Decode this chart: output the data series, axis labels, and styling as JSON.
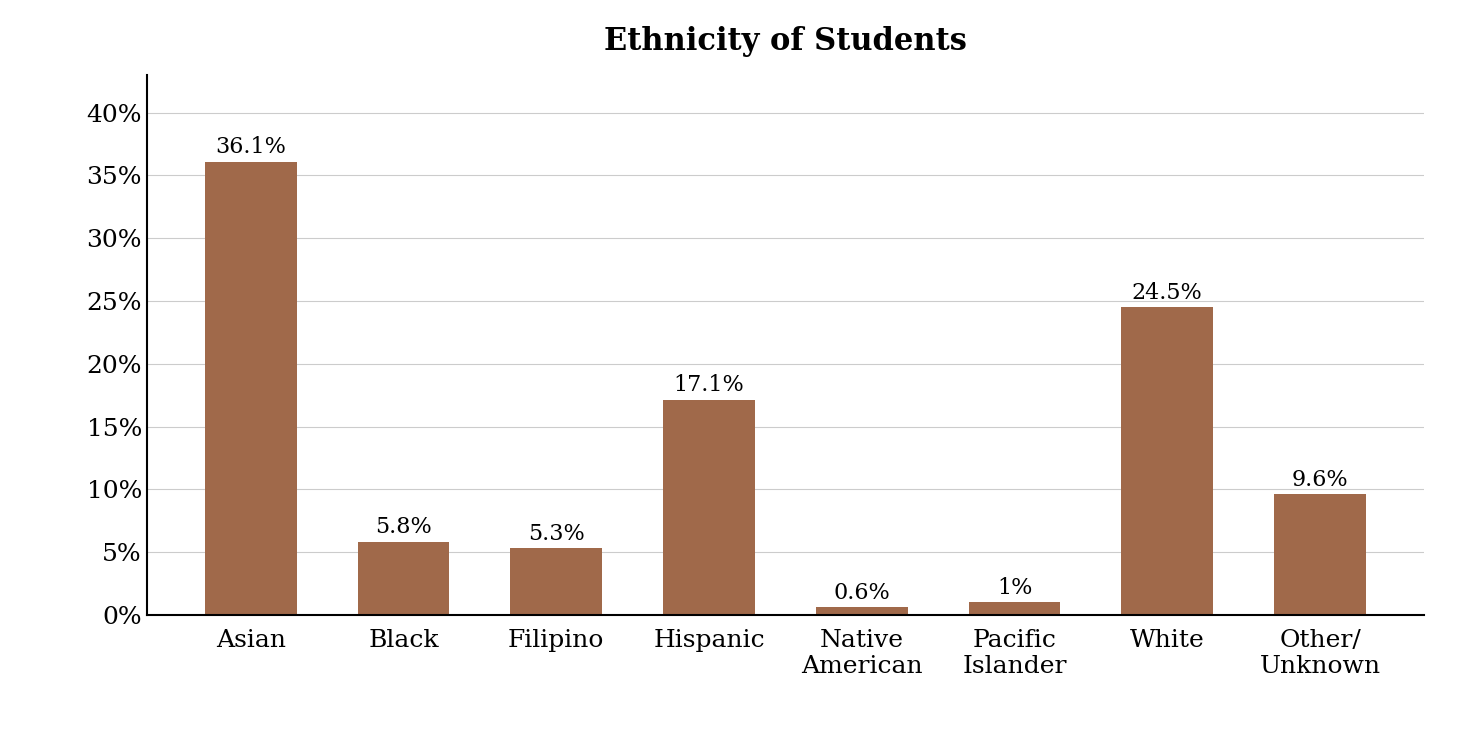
{
  "title": "Ethnicity of Students",
  "categories": [
    "Asian",
    "Black",
    "Filipino",
    "Hispanic",
    "Native\nAmerican",
    "Pacific\nIslander",
    "White",
    "Other/\nUnknown"
  ],
  "values": [
    36.1,
    5.8,
    5.3,
    17.1,
    0.6,
    1.0,
    24.5,
    9.6
  ],
  "labels": [
    "36.1%",
    "5.8%",
    "5.3%",
    "17.1%",
    "0.6%",
    "1%",
    "24.5%",
    "9.6%"
  ],
  "bar_color": "#A0694A",
  "background_color": "#ffffff",
  "ylim": [
    0,
    43
  ],
  "yticks": [
    0,
    5,
    10,
    15,
    20,
    25,
    30,
    35,
    40
  ],
  "title_fontsize": 22,
  "label_fontsize": 16,
  "tick_fontsize": 18,
  "bar_width": 0.6
}
